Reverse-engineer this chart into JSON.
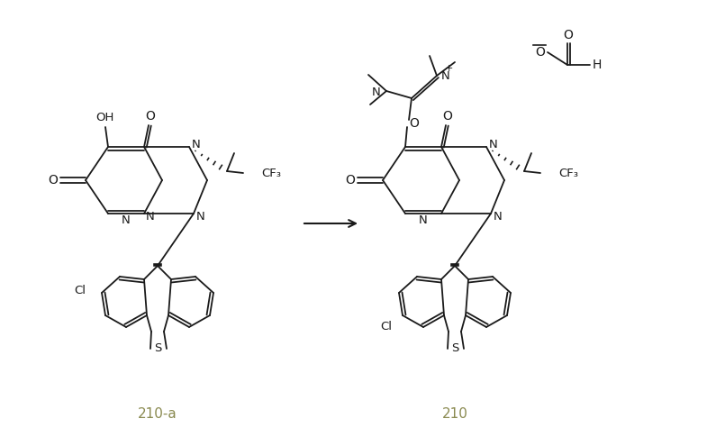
{
  "bg_color": "#ffffff",
  "line_color": "#1a1a1a",
  "label_color": "#8a8a50",
  "fig_width": 8.05,
  "fig_height": 4.95,
  "dpi": 100,
  "label_210a": "210-a",
  "label_210": "210",
  "formate_O": "O",
  "formate_H": "H"
}
